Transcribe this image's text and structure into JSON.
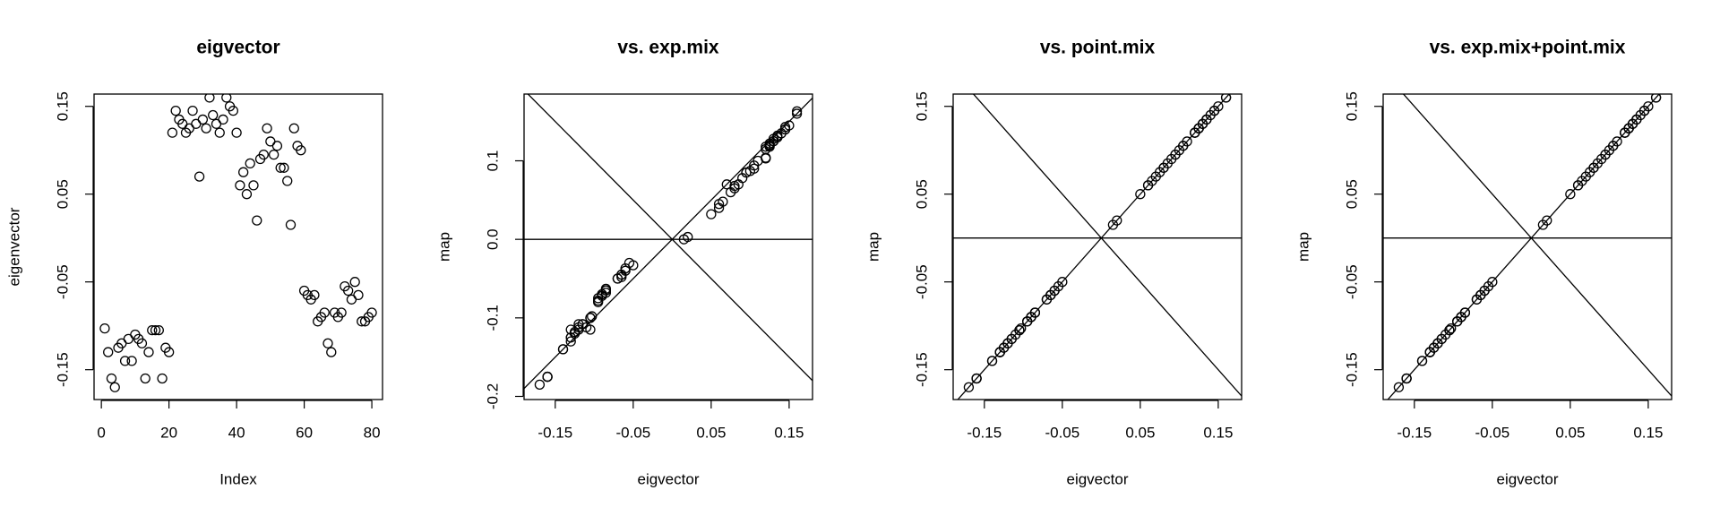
{
  "chart_data": [
    {
      "type": "scatter",
      "title": "eigvector",
      "x_label": "Index",
      "y_label": "eigenvector",
      "x": [
        1,
        2,
        3,
        4,
        5,
        6,
        7,
        8,
        9,
        10,
        11,
        12,
        13,
        14,
        15,
        16,
        17,
        18,
        19,
        20,
        21,
        22,
        23,
        24,
        25,
        26,
        27,
        28,
        29,
        30,
        31,
        32,
        33,
        34,
        35,
        36,
        37,
        38,
        39,
        40,
        41,
        42,
        43,
        44,
        45,
        46,
        47,
        48,
        49,
        50,
        51,
        52,
        53,
        54,
        55,
        56,
        57,
        58,
        59,
        60,
        61,
        62,
        63,
        64,
        65,
        66,
        67,
        68,
        69,
        70,
        71,
        72,
        73,
        74,
        75,
        76,
        77,
        78,
        79,
        80
      ],
      "values": [
        -0.103,
        -0.13,
        -0.16,
        -0.17,
        -0.125,
        -0.12,
        -0.14,
        -0.115,
        -0.14,
        -0.11,
        -0.115,
        -0.12,
        -0.16,
        -0.13,
        -0.105,
        -0.105,
        -0.105,
        -0.16,
        -0.125,
        -0.13,
        0.12,
        0.145,
        0.135,
        0.13,
        0.12,
        0.125,
        0.145,
        0.13,
        0.07,
        0.135,
        0.125,
        0.16,
        0.14,
        0.13,
        0.12,
        0.135,
        0.16,
        0.15,
        0.145,
        0.12,
        0.06,
        0.075,
        0.05,
        0.085,
        0.06,
        0.02,
        0.09,
        0.095,
        0.125,
        0.11,
        0.095,
        0.105,
        0.08,
        0.08,
        0.065,
        0.015,
        0.125,
        0.105,
        0.1,
        -0.06,
        -0.065,
        -0.07,
        -0.065,
        -0.095,
        -0.09,
        -0.085,
        -0.12,
        -0.13,
        -0.085,
        -0.09,
        -0.085,
        -0.055,
        -0.06,
        -0.07,
        -0.05,
        -0.065,
        -0.095,
        -0.095,
        -0.09,
        -0.085
      ],
      "xlim": [
        -2.16,
        83.16
      ],
      "ylim": [
        -0.184,
        0.164
      ],
      "xticks": [
        0,
        20,
        40,
        60,
        80
      ],
      "yticks": [
        -0.15,
        -0.05,
        0.05,
        0.15
      ]
    },
    {
      "type": "scatter",
      "title": "vs. exp.mix",
      "x_label": "eigvector",
      "y_label": "map",
      "x": [
        -0.103,
        -0.13,
        -0.16,
        -0.17,
        -0.125,
        -0.12,
        -0.14,
        -0.115,
        -0.14,
        -0.11,
        -0.115,
        -0.12,
        -0.16,
        -0.13,
        -0.105,
        -0.105,
        -0.105,
        -0.16,
        -0.125,
        -0.13,
        0.12,
        0.145,
        0.135,
        0.13,
        0.12,
        0.125,
        0.145,
        0.13,
        0.07,
        0.135,
        0.125,
        0.16,
        0.14,
        0.13,
        0.12,
        0.135,
        0.16,
        0.15,
        0.145,
        0.12,
        0.06,
        0.075,
        0.05,
        0.085,
        0.06,
        0.02,
        0.09,
        0.095,
        0.125,
        0.11,
        0.095,
        0.105,
        0.08,
        0.08,
        0.065,
        0.015,
        0.125,
        0.105,
        0.1,
        -0.06,
        -0.065,
        -0.07,
        -0.065,
        -0.095,
        -0.09,
        -0.085,
        -0.12,
        -0.13,
        -0.085,
        -0.09,
        -0.085,
        -0.055,
        -0.06,
        -0.07,
        -0.05,
        -0.065,
        -0.095,
        -0.095,
        -0.09,
        -0.085
      ],
      "values": [
        -0.098,
        -0.125,
        -0.175,
        -0.185,
        -0.118,
        -0.112,
        -0.14,
        -0.108,
        -0.14,
        -0.112,
        -0.108,
        -0.115,
        -0.175,
        -0.125,
        -0.1,
        -0.1,
        -0.115,
        -0.175,
        -0.12,
        -0.13,
        0.115,
        0.14,
        0.13,
        0.125,
        0.118,
        0.122,
        0.14,
        0.128,
        0.07,
        0.132,
        0.12,
        0.16,
        0.135,
        0.125,
        0.104,
        0.13,
        0.163,
        0.145,
        0.143,
        0.103,
        0.04,
        0.06,
        0.032,
        0.07,
        0.045,
        0.003,
        0.078,
        0.085,
        0.12,
        0.1,
        0.085,
        0.09,
        0.068,
        0.065,
        0.048,
        0.0,
        0.118,
        0.094,
        0.087,
        -0.04,
        -0.045,
        -0.05,
        -0.048,
        -0.075,
        -0.07,
        -0.065,
        -0.108,
        -0.115,
        -0.065,
        -0.07,
        -0.063,
        -0.03,
        -0.037,
        -0.05,
        -0.033,
        -0.045,
        -0.08,
        -0.078,
        -0.072,
        -0.068
      ],
      "xlim": [
        -0.19,
        0.18
      ],
      "ylim": [
        -0.204,
        0.185
      ],
      "xticks": [
        -0.15,
        -0.05,
        0.05,
        0.15
      ],
      "yticks": [
        -0.2,
        -0.1,
        {
          "value": 0,
          "label": "0.0"
        },
        0.1
      ],
      "reference_lines": [
        {
          "intercept": 0,
          "slope": 1
        },
        {
          "intercept": 0,
          "slope": -1
        },
        {
          "intercept": 0,
          "slope": 0
        }
      ]
    },
    {
      "type": "scatter",
      "title": "vs. point.mix",
      "x_label": "eigvector",
      "y_label": "map",
      "x": [
        -0.103,
        -0.13,
        -0.16,
        -0.17,
        -0.125,
        -0.12,
        -0.14,
        -0.115,
        -0.14,
        -0.11,
        -0.115,
        -0.12,
        -0.16,
        -0.13,
        -0.105,
        -0.105,
        -0.105,
        -0.16,
        -0.125,
        -0.13,
        0.12,
        0.145,
        0.135,
        0.13,
        0.12,
        0.125,
        0.145,
        0.13,
        0.07,
        0.135,
        0.125,
        0.16,
        0.14,
        0.13,
        0.12,
        0.135,
        0.16,
        0.15,
        0.145,
        0.12,
        0.06,
        0.075,
        0.05,
        0.085,
        0.06,
        0.02,
        0.09,
        0.095,
        0.125,
        0.11,
        0.095,
        0.105,
        0.08,
        0.08,
        0.065,
        0.015,
        0.125,
        0.105,
        0.1,
        -0.06,
        -0.065,
        -0.07,
        -0.065,
        -0.095,
        -0.09,
        -0.085,
        -0.12,
        -0.13,
        -0.085,
        -0.09,
        -0.085,
        -0.055,
        -0.06,
        -0.07,
        -0.05,
        -0.065,
        -0.095,
        -0.095,
        -0.09,
        -0.085
      ],
      "values": [
        -0.103,
        -0.13,
        -0.16,
        -0.17,
        -0.125,
        -0.12,
        -0.14,
        -0.115,
        -0.14,
        -0.11,
        -0.115,
        -0.12,
        -0.16,
        -0.13,
        -0.105,
        -0.105,
        -0.105,
        -0.16,
        -0.125,
        -0.13,
        0.12,
        0.145,
        0.135,
        0.13,
        0.12,
        0.125,
        0.145,
        0.13,
        0.07,
        0.135,
        0.125,
        0.16,
        0.14,
        0.13,
        0.12,
        0.135,
        0.16,
        0.15,
        0.145,
        0.12,
        0.06,
        0.075,
        0.05,
        0.085,
        0.06,
        0.02,
        0.09,
        0.095,
        0.125,
        0.11,
        0.095,
        0.105,
        0.08,
        0.08,
        0.065,
        0.015,
        0.125,
        0.105,
        0.1,
        -0.06,
        -0.065,
        -0.07,
        -0.065,
        -0.095,
        -0.09,
        -0.085,
        -0.12,
        -0.13,
        -0.085,
        -0.09,
        -0.085,
        -0.055,
        -0.06,
        -0.07,
        -0.05,
        -0.065,
        -0.095,
        -0.095,
        -0.09,
        -0.085
      ],
      "xlim": [
        -0.19,
        0.18
      ],
      "ylim": [
        -0.184,
        0.164
      ],
      "xticks": [
        -0.15,
        -0.05,
        0.05,
        0.15
      ],
      "yticks": [
        -0.15,
        -0.05,
        0.05,
        0.15
      ],
      "reference_lines": [
        {
          "intercept": 0,
          "slope": 1
        },
        {
          "intercept": 0,
          "slope": -1
        },
        {
          "intercept": 0,
          "slope": 0
        }
      ]
    },
    {
      "type": "scatter",
      "title": "vs. exp.mix+point.mix",
      "x_label": "eigvector",
      "y_label": "map",
      "x": [
        -0.103,
        -0.13,
        -0.16,
        -0.17,
        -0.125,
        -0.12,
        -0.14,
        -0.115,
        -0.14,
        -0.11,
        -0.115,
        -0.12,
        -0.16,
        -0.13,
        -0.105,
        -0.105,
        -0.105,
        -0.16,
        -0.125,
        -0.13,
        0.12,
        0.145,
        0.135,
        0.13,
        0.12,
        0.125,
        0.145,
        0.13,
        0.07,
        0.135,
        0.125,
        0.16,
        0.14,
        0.13,
        0.12,
        0.135,
        0.16,
        0.15,
        0.145,
        0.12,
        0.06,
        0.075,
        0.05,
        0.085,
        0.06,
        0.02,
        0.09,
        0.095,
        0.125,
        0.11,
        0.095,
        0.105,
        0.08,
        0.08,
        0.065,
        0.015,
        0.125,
        0.105,
        0.1,
        -0.06,
        -0.065,
        -0.07,
        -0.065,
        -0.095,
        -0.09,
        -0.085,
        -0.12,
        -0.13,
        -0.085,
        -0.09,
        -0.085,
        -0.055,
        -0.06,
        -0.07,
        -0.05,
        -0.065,
        -0.095,
        -0.095,
        -0.09,
        -0.085
      ],
      "values": [
        -0.103,
        -0.13,
        -0.16,
        -0.17,
        -0.125,
        -0.12,
        -0.14,
        -0.115,
        -0.14,
        -0.11,
        -0.115,
        -0.12,
        -0.16,
        -0.13,
        -0.105,
        -0.105,
        -0.105,
        -0.16,
        -0.125,
        -0.13,
        0.12,
        0.145,
        0.135,
        0.13,
        0.12,
        0.125,
        0.145,
        0.13,
        0.07,
        0.135,
        0.125,
        0.16,
        0.14,
        0.13,
        0.12,
        0.135,
        0.16,
        0.15,
        0.145,
        0.12,
        0.06,
        0.075,
        0.05,
        0.085,
        0.06,
        0.02,
        0.09,
        0.095,
        0.125,
        0.11,
        0.095,
        0.105,
        0.08,
        0.08,
        0.065,
        0.015,
        0.125,
        0.105,
        0.1,
        -0.06,
        -0.065,
        -0.07,
        -0.065,
        -0.095,
        -0.09,
        -0.085,
        -0.12,
        -0.13,
        -0.085,
        -0.09,
        -0.085,
        -0.055,
        -0.06,
        -0.07,
        -0.05,
        -0.065,
        -0.095,
        -0.095,
        -0.09,
        -0.085
      ],
      "xlim": [
        -0.19,
        0.18
      ],
      "ylim": [
        -0.184,
        0.164
      ],
      "xticks": [
        -0.15,
        -0.05,
        0.05,
        0.15
      ],
      "yticks": [
        -0.15,
        -0.05,
        0.05,
        0.15
      ],
      "reference_lines": [
        {
          "intercept": 0,
          "slope": 1
        },
        {
          "intercept": 0,
          "slope": -1
        },
        {
          "intercept": 0,
          "slope": 0
        }
      ]
    }
  ]
}
